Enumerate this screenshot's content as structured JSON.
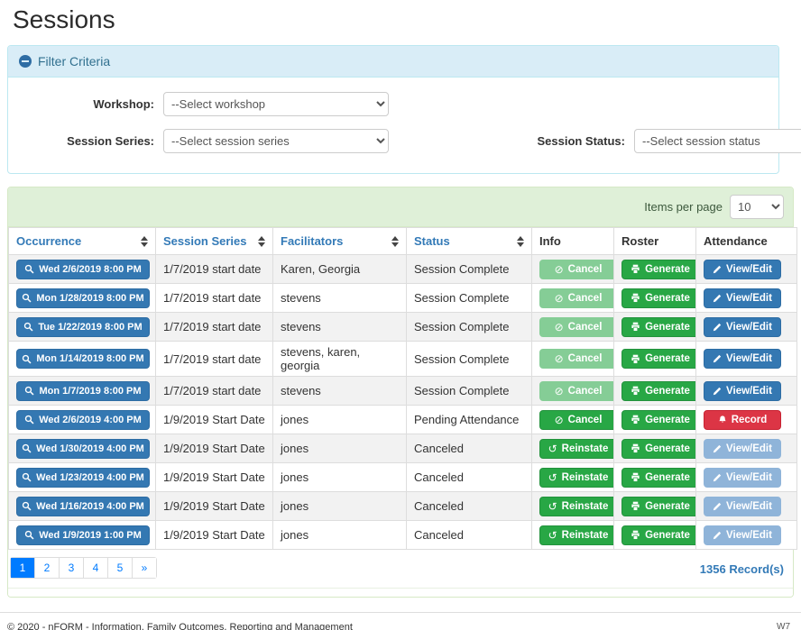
{
  "page": {
    "title": "Sessions"
  },
  "colors": {
    "accent_blue": "#3478b2",
    "success_green": "#28a745",
    "danger_red": "#dc3545",
    "info_panel_bg": "#d9edf7",
    "info_panel_border": "#bce8f1",
    "info_text": "#31708f",
    "success_panel_bg": "#dff0d8",
    "success_panel_border": "#d6e9c6",
    "pagination_active": "#007bff",
    "row_stripe": "#f2f2f2"
  },
  "filter": {
    "header": "Filter Criteria",
    "collapse_icon": "minus-circle-icon",
    "workshop": {
      "label": "Workshop:",
      "value": "--Select workshop"
    },
    "session_series": {
      "label": "Session Series:",
      "value": "--Select session series"
    },
    "session_status": {
      "label": "Session Status:",
      "value": "--Select session status"
    }
  },
  "table": {
    "items_per_page_label": "Items per page",
    "items_per_page_value": "10",
    "columns": [
      {
        "label": "Occurrence",
        "sortable": true
      },
      {
        "label": "Session Series",
        "sortable": true
      },
      {
        "label": "Facilitators",
        "sortable": true
      },
      {
        "label": "Status",
        "sortable": true
      },
      {
        "label": "Info",
        "sortable": false
      },
      {
        "label": "Roster",
        "sortable": false
      },
      {
        "label": "Attendance",
        "sortable": false
      }
    ],
    "rows": [
      {
        "occurrence": "Wed 2/6/2019 8:00 PM",
        "series": "1/7/2019 start date",
        "facilitators": "Karen, Georgia",
        "status": "Session Complete",
        "info": {
          "label": "Cancel",
          "icon": "ban",
          "variant": "success",
          "disabled": true
        },
        "roster": {
          "label": "Generate",
          "icon": "printer",
          "variant": "success",
          "disabled": false
        },
        "attendance": {
          "label": "View/Edit",
          "icon": "pencil",
          "variant": "primary",
          "disabled": false
        }
      },
      {
        "occurrence": "Mon 1/28/2019 8:00 PM",
        "series": "1/7/2019 start date",
        "facilitators": "stevens",
        "status": "Session Complete",
        "info": {
          "label": "Cancel",
          "icon": "ban",
          "variant": "success",
          "disabled": true
        },
        "roster": {
          "label": "Generate",
          "icon": "printer",
          "variant": "success",
          "disabled": false
        },
        "attendance": {
          "label": "View/Edit",
          "icon": "pencil",
          "variant": "primary",
          "disabled": false
        }
      },
      {
        "occurrence": "Tue 1/22/2019 8:00 PM",
        "series": "1/7/2019 start date",
        "facilitators": "stevens",
        "status": "Session Complete",
        "info": {
          "label": "Cancel",
          "icon": "ban",
          "variant": "success",
          "disabled": true
        },
        "roster": {
          "label": "Generate",
          "icon": "printer",
          "variant": "success",
          "disabled": false
        },
        "attendance": {
          "label": "View/Edit",
          "icon": "pencil",
          "variant": "primary",
          "disabled": false
        }
      },
      {
        "occurrence": "Mon 1/14/2019 8:00 PM",
        "series": "1/7/2019 start date",
        "facilitators": "stevens, karen, georgia",
        "status": "Session Complete",
        "info": {
          "label": "Cancel",
          "icon": "ban",
          "variant": "success",
          "disabled": true
        },
        "roster": {
          "label": "Generate",
          "icon": "printer",
          "variant": "success",
          "disabled": false
        },
        "attendance": {
          "label": "View/Edit",
          "icon": "pencil",
          "variant": "primary",
          "disabled": false
        }
      },
      {
        "occurrence": "Mon 1/7/2019 8:00 PM",
        "series": "1/7/2019 start date",
        "facilitators": "stevens",
        "status": "Session Complete",
        "info": {
          "label": "Cancel",
          "icon": "ban",
          "variant": "success",
          "disabled": true
        },
        "roster": {
          "label": "Generate",
          "icon": "printer",
          "variant": "success",
          "disabled": false
        },
        "attendance": {
          "label": "View/Edit",
          "icon": "pencil",
          "variant": "primary",
          "disabled": false
        }
      },
      {
        "occurrence": "Wed 2/6/2019 4:00 PM",
        "series": "1/9/2019 Start Date",
        "facilitators": "jones",
        "status": "Pending Attendance",
        "info": {
          "label": "Cancel",
          "icon": "ban",
          "variant": "success",
          "disabled": false
        },
        "roster": {
          "label": "Generate",
          "icon": "printer",
          "variant": "success",
          "disabled": false
        },
        "attendance": {
          "label": "Record",
          "icon": "bell",
          "variant": "danger",
          "disabled": false
        }
      },
      {
        "occurrence": "Wed 1/30/2019 4:00 PM",
        "series": "1/9/2019 Start Date",
        "facilitators": "jones",
        "status": "Canceled",
        "info": {
          "label": "Reinstate",
          "icon": "undo",
          "variant": "success",
          "disabled": false
        },
        "roster": {
          "label": "Generate",
          "icon": "printer",
          "variant": "success",
          "disabled": false
        },
        "attendance": {
          "label": "View/Edit",
          "icon": "pencil",
          "variant": "primary",
          "disabled": true
        }
      },
      {
        "occurrence": "Wed 1/23/2019 4:00 PM",
        "series": "1/9/2019 Start Date",
        "facilitators": "jones",
        "status": "Canceled",
        "info": {
          "label": "Reinstate",
          "icon": "undo",
          "variant": "success",
          "disabled": false
        },
        "roster": {
          "label": "Generate",
          "icon": "printer",
          "variant": "success",
          "disabled": false
        },
        "attendance": {
          "label": "View/Edit",
          "icon": "pencil",
          "variant": "primary",
          "disabled": true
        }
      },
      {
        "occurrence": "Wed 1/16/2019 4:00 PM",
        "series": "1/9/2019 Start Date",
        "facilitators": "jones",
        "status": "Canceled",
        "info": {
          "label": "Reinstate",
          "icon": "undo",
          "variant": "success",
          "disabled": false
        },
        "roster": {
          "label": "Generate",
          "icon": "printer",
          "variant": "success",
          "disabled": false
        },
        "attendance": {
          "label": "View/Edit",
          "icon": "pencil",
          "variant": "primary",
          "disabled": true
        }
      },
      {
        "occurrence": "Wed 1/9/2019 1:00 PM",
        "series": "1/9/2019 Start Date",
        "facilitators": "jones",
        "status": "Canceled",
        "info": {
          "label": "Reinstate",
          "icon": "undo",
          "variant": "success",
          "disabled": false
        },
        "roster": {
          "label": "Generate",
          "icon": "printer",
          "variant": "success",
          "disabled": false
        },
        "attendance": {
          "label": "View/Edit",
          "icon": "pencil",
          "variant": "primary",
          "disabled": true
        }
      }
    ],
    "pagination": {
      "pages": [
        "1",
        "2",
        "3",
        "4",
        "5",
        "»"
      ],
      "active_index": 0
    },
    "records_label": "1356 Record(s)"
  },
  "footer": {
    "copyright": "© 2020 - nFORM - Information, Family Outcomes, Reporting and Management",
    "environment": "W7"
  }
}
